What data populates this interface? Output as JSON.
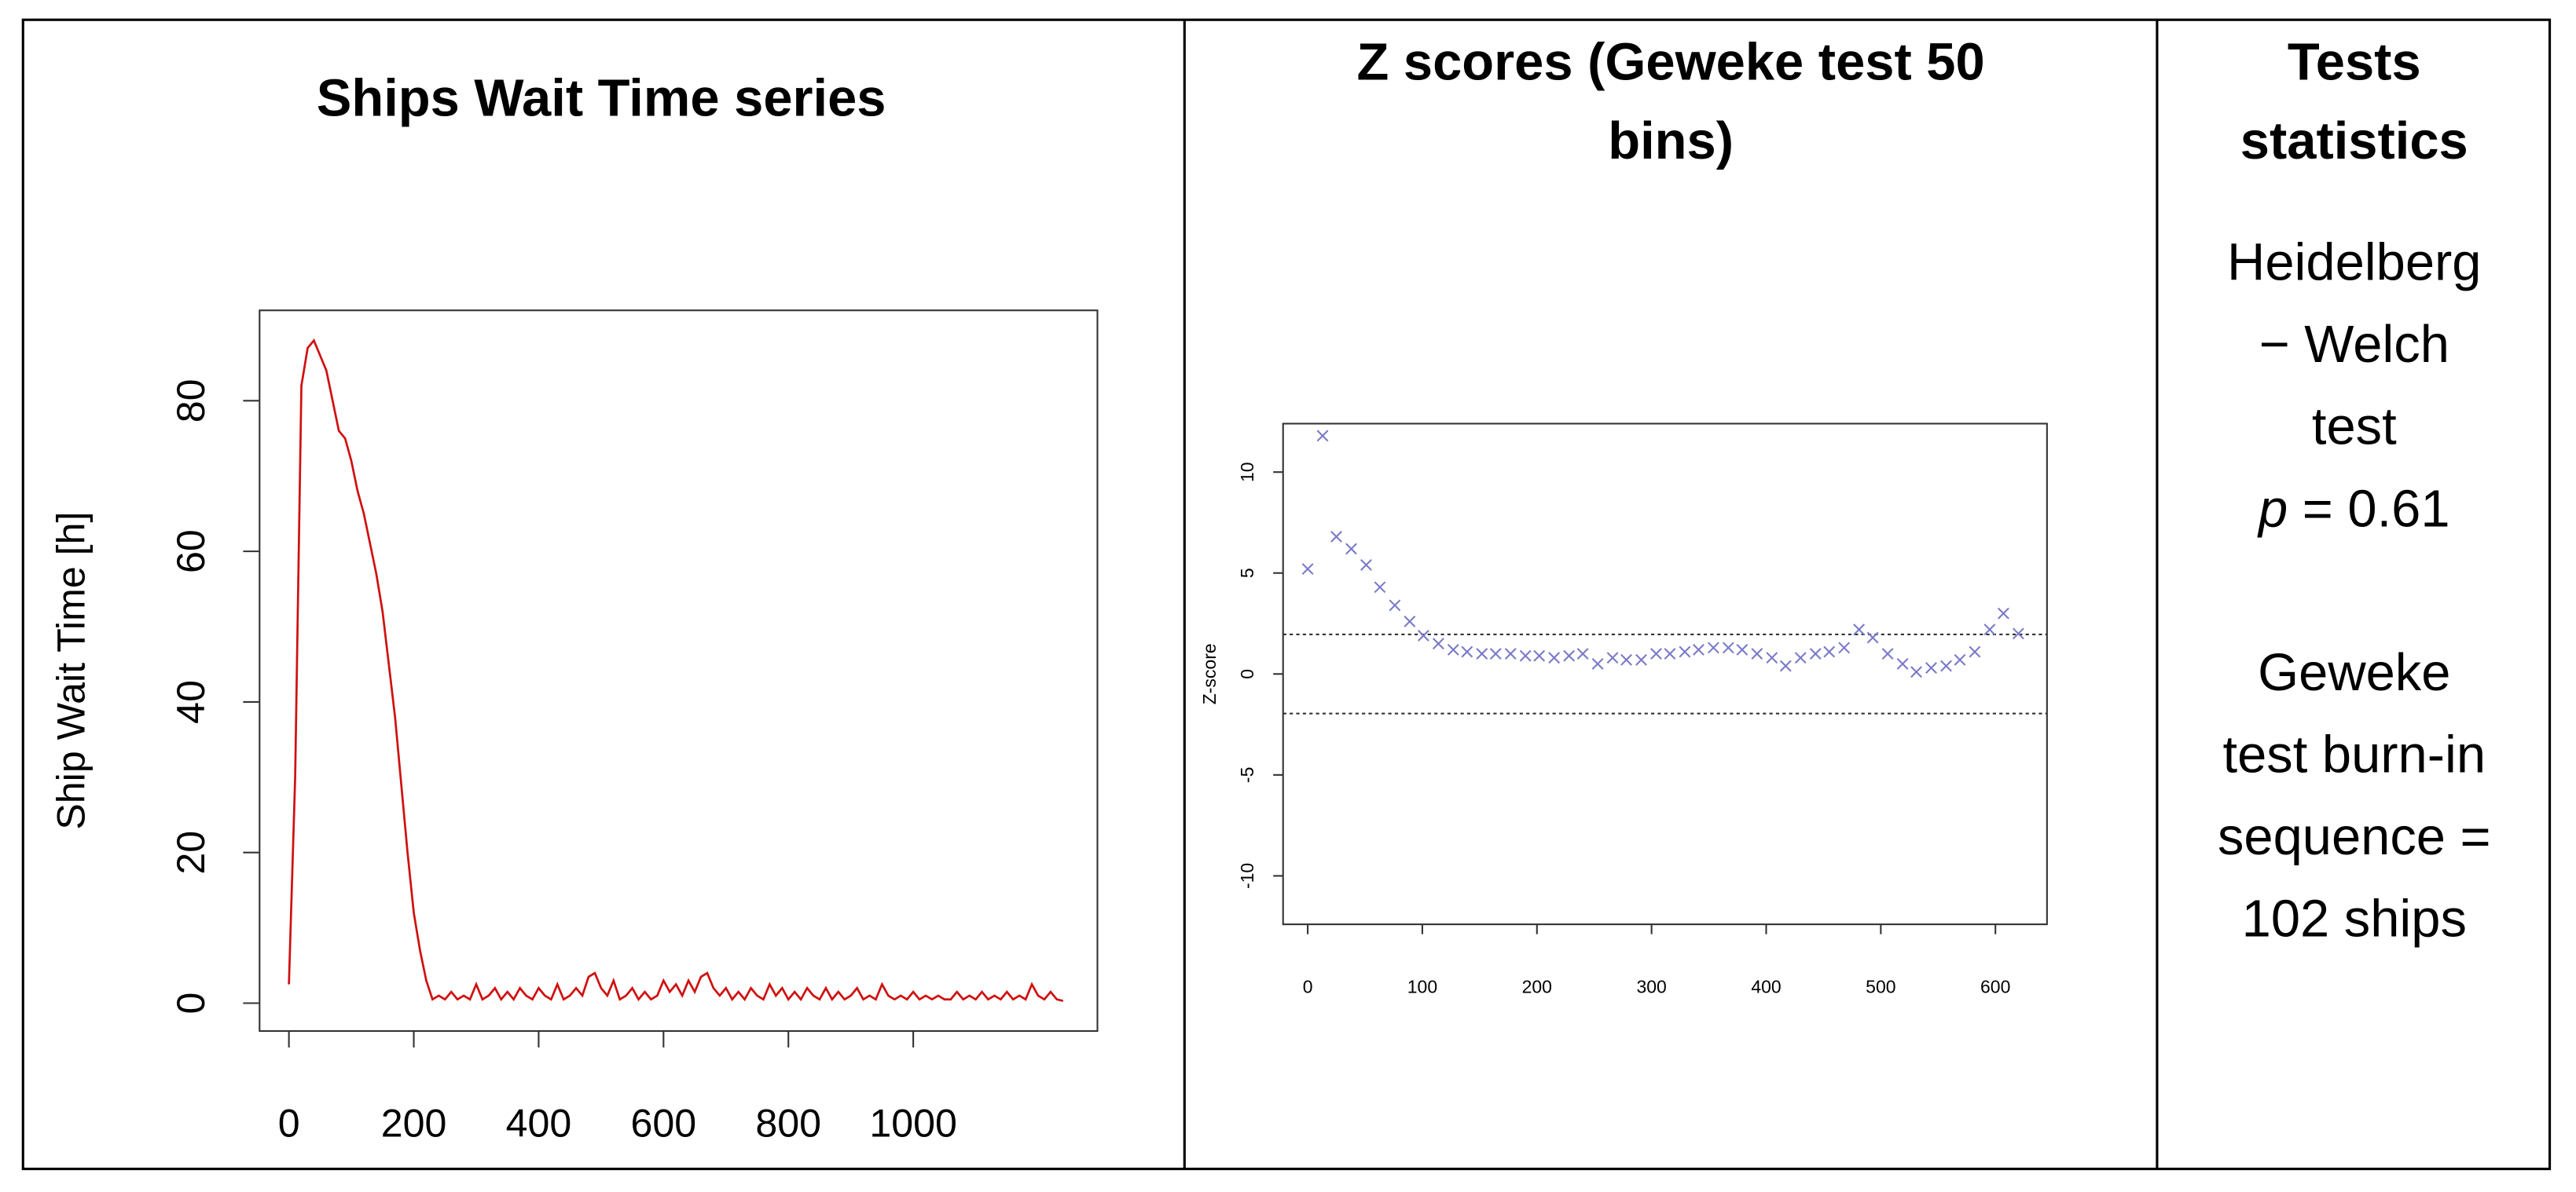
{
  "table": {
    "headers": [
      [
        "Ships Wait Time series"
      ],
      [
        "Z scores (Geweke test 50",
        "bins)"
      ],
      [
        "Tests",
        "statistics"
      ]
    ],
    "stats": [
      [
        "Heidelberg",
        "− Welch",
        "test",
        {
          "var": "p",
          "text": "= 0.61"
        }
      ],
      [
        "Geweke",
        "test burn-in",
        "sequence =",
        "102 ships"
      ]
    ]
  },
  "chart_data": [
    {
      "type": "line",
      "ylabel": "Ship Wait Time [h]",
      "color": "#d01010",
      "xlim": [
        -47,
        1295
      ],
      "ylim": [
        -3.7,
        92
      ],
      "xticks": [
        0,
        200,
        400,
        600,
        800,
        1000
      ],
      "yticks": [
        0,
        20,
        40,
        60,
        80
      ],
      "series": [
        {
          "x": [
            0,
            10,
            20,
            30,
            40,
            50,
            60,
            70,
            80,
            90,
            100,
            110,
            120,
            130,
            140,
            150,
            160,
            170,
            180,
            190,
            200,
            210,
            220,
            230,
            240,
            250,
            260,
            270,
            280,
            290,
            300,
            310,
            320,
            330,
            340,
            350,
            360,
            370,
            380,
            390,
            400,
            410,
            420,
            430,
            440,
            450,
            460,
            470,
            480,
            490,
            500,
            510,
            520,
            530,
            540,
            550,
            560,
            570,
            580,
            590,
            600,
            610,
            620,
            630,
            640,
            650,
            660,
            670,
            680,
            690,
            700,
            710,
            720,
            730,
            740,
            750,
            760,
            770,
            780,
            790,
            800,
            810,
            820,
            830,
            840,
            850,
            860,
            870,
            880,
            890,
            900,
            910,
            920,
            930,
            940,
            950,
            960,
            970,
            980,
            990,
            1000,
            1010,
            1020,
            1030,
            1040,
            1050,
            1060,
            1070,
            1080,
            1090,
            1100,
            1110,
            1120,
            1130,
            1140,
            1150,
            1160,
            1170,
            1180,
            1190,
            1200,
            1210,
            1220,
            1230,
            1240
          ],
          "values": [
            2.5,
            30,
            82,
            87,
            88,
            86,
            84,
            80,
            76,
            75,
            72,
            68,
            65,
            61,
            57,
            52,
            45,
            38,
            29,
            20,
            12,
            7,
            3,
            0.5,
            1,
            0.5,
            1.5,
            0.5,
            1,
            0.5,
            2.5,
            0.5,
            1,
            2,
            0.5,
            1.5,
            0.5,
            2,
            1,
            0.5,
            2,
            1,
            0.5,
            2.5,
            0.5,
            1,
            2,
            1,
            3.5,
            4,
            2,
            1,
            3,
            0.5,
            1,
            2,
            0.5,
            1.5,
            0.5,
            1,
            3,
            1.5,
            2.5,
            1,
            3,
            1.5,
            3.5,
            4,
            2,
            1,
            2,
            0.5,
            1.5,
            0.5,
            2,
            1,
            0.5,
            2.5,
            1,
            2,
            0.5,
            1.5,
            0.5,
            2,
            1,
            0.5,
            2,
            0.5,
            1.5,
            0.5,
            1,
            2,
            0.5,
            1,
            0.5,
            2.5,
            1,
            0.5,
            1,
            0.5,
            1.5,
            0.5,
            1,
            0.5,
            1,
            0.5,
            0.5,
            1.5,
            0.5,
            1,
            0.5,
            1.5,
            0.5,
            1,
            0.5,
            1.5,
            0.5,
            1,
            0.5,
            2.5,
            1,
            0.5,
            1.5,
            0.5,
            0.3
          ]
        }
      ]
    },
    {
      "type": "scatter",
      "ylabel": "Z-score",
      "color": "#7a7ac8",
      "xlim": [
        -21.5,
        645
      ],
      "ylim": [
        -12.4,
        12.4
      ],
      "xticks": [
        0,
        100,
        200,
        300,
        400,
        500,
        600
      ],
      "yticks": [
        -10,
        -5,
        0,
        5,
        10
      ],
      "hlines": [
        1.96,
        -1.96
      ],
      "series": [
        {
          "x": [
            0,
            13,
            25,
            38,
            51,
            63,
            76,
            89,
            101,
            114,
            127,
            139,
            152,
            164,
            177,
            190,
            202,
            215,
            228,
            240,
            253,
            266,
            278,
            291,
            304,
            316,
            329,
            341,
            354,
            367,
            379,
            392,
            405,
            417,
            430,
            443,
            455,
            468,
            481,
            493,
            506,
            519,
            531,
            544,
            557,
            569,
            582,
            595,
            607,
            620
          ],
          "values": [
            5.2,
            11.8,
            6.8,
            6.2,
            5.4,
            4.3,
            3.4,
            2.6,
            1.9,
            1.5,
            1.2,
            1.1,
            1.0,
            1.0,
            1.0,
            0.9,
            0.9,
            0.8,
            0.9,
            1.0,
            0.5,
            0.8,
            0.7,
            0.7,
            1.0,
            1.0,
            1.1,
            1.2,
            1.3,
            1.3,
            1.2,
            1.0,
            0.8,
            0.4,
            0.8,
            1.0,
            1.1,
            1.3,
            2.2,
            1.8,
            1.0,
            0.5,
            0.1,
            0.3,
            0.4,
            0.7,
            1.1,
            2.2,
            3.0,
            2.0
          ]
        }
      ]
    }
  ]
}
